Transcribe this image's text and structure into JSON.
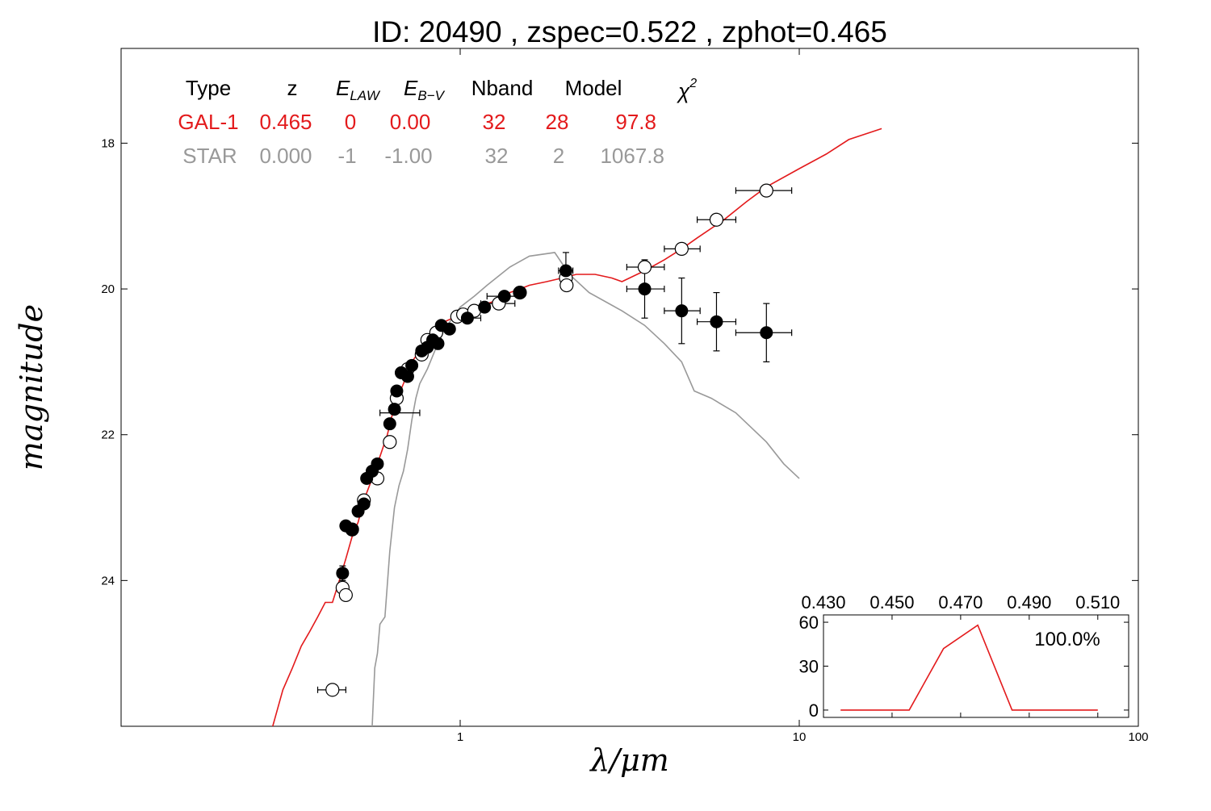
{
  "title": "ID:  20490 , zspec=0.522 , zphot=0.465",
  "colors": {
    "galaxy": "#e31a1c",
    "star": "#999999",
    "axis": "#000000"
  },
  "chart_data": [
    {
      "type": "scatter",
      "xlabel": "λ/μm",
      "ylabel": "magnitude",
      "x_scale": "log",
      "y_inverted": true,
      "xlim": [
        0.1,
        100
      ],
      "ylim": [
        26.0,
        16.7
      ],
      "x_ticks": [
        {
          "value": 1,
          "label": "1"
        },
        {
          "value": 10,
          "label": "10"
        },
        {
          "value": 100,
          "label": "100"
        }
      ],
      "y_ticks": [
        {
          "value": 18,
          "label": "18"
        },
        {
          "value": 20,
          "label": "20"
        },
        {
          "value": 22,
          "label": "22"
        },
        {
          "value": 24,
          "label": "24"
        }
      ],
      "table": {
        "header": [
          "Type",
          "z",
          "E_LAW",
          "E_B−V",
          "Nband",
          "Model",
          "χ²"
        ],
        "header_display": {
          "type": "Type",
          "z": "z",
          "elaw_main": "E",
          "elaw_sub": "LAW",
          "ebv_main": "E",
          "ebv_sub": "B−V",
          "nband": "Nband",
          "model": "Model",
          "chi_main": "χ",
          "chi_sup": "2"
        },
        "rows": [
          {
            "type": "GAL-1",
            "z": "0.465",
            "elaw": "0",
            "ebv": "0.00",
            "nband": "32",
            "model": "28",
            "chi2": "97.8",
            "color": "#e31a1c"
          },
          {
            "type": "STAR",
            "z": "0.000",
            "elaw": "-1",
            "ebv": "-1.00",
            "nband": "32",
            "model": "2",
            "chi2": "1067.8",
            "color": "#999999"
          }
        ]
      },
      "series": [
        {
          "name": "GAL-1",
          "kind": "line",
          "points": [
            [
              0.28,
              26.0
            ],
            [
              0.3,
              25.5
            ],
            [
              0.32,
              25.2
            ],
            [
              0.34,
              24.9
            ],
            [
              0.36,
              24.7
            ],
            [
              0.38,
              24.5
            ],
            [
              0.4,
              24.3
            ],
            [
              0.42,
              24.3
            ],
            [
              0.44,
              24.0
            ],
            [
              0.46,
              23.7
            ],
            [
              0.48,
              23.4
            ],
            [
              0.5,
              23.2
            ],
            [
              0.52,
              22.9
            ],
            [
              0.55,
              22.6
            ],
            [
              0.58,
              22.3
            ],
            [
              0.61,
              22.0
            ],
            [
              0.64,
              21.6
            ],
            [
              0.68,
              21.3
            ],
            [
              0.72,
              21.0
            ],
            [
              0.76,
              20.85
            ],
            [
              0.8,
              20.7
            ],
            [
              0.85,
              20.55
            ],
            [
              0.9,
              20.45
            ],
            [
              0.95,
              20.4
            ],
            [
              1.0,
              20.35
            ],
            [
              1.1,
              20.25
            ],
            [
              1.2,
              20.2
            ],
            [
              1.3,
              20.15
            ],
            [
              1.4,
              20.05
            ],
            [
              1.5,
              20.0
            ],
            [
              1.6,
              19.95
            ],
            [
              1.8,
              19.9
            ],
            [
              2.0,
              19.85
            ],
            [
              2.2,
              19.8
            ],
            [
              2.5,
              19.8
            ],
            [
              2.8,
              19.85
            ],
            [
              3.0,
              19.9
            ],
            [
              3.5,
              19.75
            ],
            [
              4.0,
              19.6
            ],
            [
              4.5,
              19.45
            ],
            [
              5.0,
              19.3
            ],
            [
              6.0,
              19.05
            ],
            [
              7.0,
              18.8
            ],
            [
              8.0,
              18.6
            ],
            [
              10.0,
              18.35
            ],
            [
              12.0,
              18.15
            ],
            [
              14.0,
              17.95
            ],
            [
              17.5,
              17.8
            ]
          ]
        },
        {
          "name": "STAR",
          "kind": "line",
          "points": [
            [
              0.55,
              26.0
            ],
            [
              0.56,
              25.2
            ],
            [
              0.57,
              25.0
            ],
            [
              0.58,
              24.6
            ],
            [
              0.6,
              24.5
            ],
            [
              0.62,
              23.6
            ],
            [
              0.64,
              23.0
            ],
            [
              0.66,
              22.7
            ],
            [
              0.68,
              22.5
            ],
            [
              0.7,
              22.2
            ],
            [
              0.72,
              21.8
            ],
            [
              0.74,
              21.5
            ],
            [
              0.76,
              21.3
            ],
            [
              0.8,
              21.1
            ],
            [
              0.85,
              20.8
            ],
            [
              0.9,
              20.55
            ],
            [
              0.95,
              20.4
            ],
            [
              1.0,
              20.25
            ],
            [
              1.1,
              20.1
            ],
            [
              1.2,
              19.95
            ],
            [
              1.4,
              19.7
            ],
            [
              1.6,
              19.55
            ],
            [
              1.9,
              19.5
            ],
            [
              2.1,
              19.8
            ],
            [
              2.4,
              20.05
            ],
            [
              3.0,
              20.3
            ],
            [
              3.5,
              20.5
            ],
            [
              4.0,
              20.75
            ],
            [
              4.5,
              21.0
            ],
            [
              4.9,
              21.4
            ],
            [
              5.5,
              21.5
            ],
            [
              6.5,
              21.7
            ],
            [
              8.0,
              22.1
            ],
            [
              9.0,
              22.4
            ],
            [
              10.0,
              22.6
            ]
          ]
        },
        {
          "name": "observed",
          "kind": "filled-markers",
          "points": [
            [
              0.45,
              23.9
            ],
            [
              0.46,
              23.25
            ],
            [
              0.48,
              23.3
            ],
            [
              0.5,
              23.05
            ],
            [
              0.52,
              22.95
            ],
            [
              0.53,
              22.6
            ],
            [
              0.55,
              22.5
            ],
            [
              0.57,
              22.4
            ],
            [
              0.62,
              21.85
            ],
            [
              0.64,
              21.65
            ],
            [
              0.65,
              21.4
            ],
            [
              0.67,
              21.15
            ],
            [
              0.7,
              21.2
            ],
            [
              0.72,
              21.05
            ],
            [
              0.77,
              20.85
            ],
            [
              0.8,
              20.8
            ],
            [
              0.83,
              20.7
            ],
            [
              0.86,
              20.75
            ],
            [
              0.88,
              20.5
            ],
            [
              0.93,
              20.55
            ],
            [
              1.05,
              20.4
            ],
            [
              1.18,
              20.25
            ],
            [
              1.35,
              20.1
            ],
            [
              1.5,
              20.05
            ],
            [
              2.05,
              19.75
            ],
            [
              3.5,
              20.0
            ],
            [
              4.5,
              20.3
            ],
            [
              5.7,
              20.45
            ],
            [
              8.0,
              20.6
            ]
          ]
        },
        {
          "name": "model",
          "kind": "open-markers",
          "points": [
            [
              0.42,
              25.5
            ],
            [
              0.45,
              24.1
            ],
            [
              0.46,
              24.2
            ],
            [
              0.48,
              23.3
            ],
            [
              0.52,
              22.9
            ],
            [
              0.57,
              22.6
            ],
            [
              0.62,
              22.1
            ],
            [
              0.65,
              21.5
            ],
            [
              0.7,
              21.1
            ],
            [
              0.77,
              20.9
            ],
            [
              0.8,
              20.7
            ],
            [
              0.85,
              20.6
            ],
            [
              0.98,
              20.38
            ],
            [
              1.02,
              20.35
            ],
            [
              1.1,
              20.3
            ],
            [
              1.3,
              20.2
            ],
            [
              1.5,
              20.05
            ],
            [
              2.05,
              19.85
            ],
            [
              2.06,
              19.95
            ],
            [
              3.5,
              19.7
            ],
            [
              4.5,
              19.45
            ],
            [
              5.7,
              19.05
            ],
            [
              8.0,
              18.65
            ]
          ]
        },
        {
          "name": "errorbars",
          "kind": "errorbars",
          "points": [
            [
              0.42,
              25.5,
              0.38,
              0.46,
              0,
              0
            ],
            [
              0.45,
              23.9,
              0.44,
              0.46,
              0.1,
              0.1
            ],
            [
              0.47,
              23.28,
              0.45,
              0.49,
              0,
              0
            ],
            [
              0.67,
              21.7,
              0.58,
              0.76,
              0,
              0
            ],
            [
              1.3,
              20.2,
              1.15,
              1.45,
              0,
              0
            ],
            [
              1.05,
              20.4,
              0.95,
              1.15,
              0,
              0
            ],
            [
              1.35,
              20.1,
              1.2,
              1.5,
              0,
              0
            ],
            [
              2.05,
              19.75,
              1.95,
              2.15,
              0.25,
              0.25
            ],
            [
              3.5,
              20.0,
              3.1,
              4.0,
              0.4,
              0.4
            ],
            [
              3.5,
              19.7,
              3.1,
              4.0,
              0,
              0
            ],
            [
              4.5,
              20.3,
              4.0,
              5.1,
              0.45,
              0.45
            ],
            [
              4.5,
              19.45,
              4.0,
              5.1,
              0,
              0
            ],
            [
              5.7,
              20.45,
              5.0,
              6.5,
              0.4,
              0.4
            ],
            [
              5.7,
              19.05,
              5.0,
              6.5,
              0,
              0
            ],
            [
              8.0,
              20.6,
              6.5,
              9.5,
              0.4,
              0.4
            ],
            [
              8.0,
              18.65,
              6.5,
              9.5,
              0,
              0
            ]
          ]
        }
      ]
    },
    {
      "type": "line",
      "xlim": [
        0.43,
        0.519
      ],
      "ylim": [
        -5,
        65
      ],
      "x_ticks": [
        "0.430",
        "0.450",
        "0.470",
        "0.490",
        "0.510"
      ],
      "y_ticks": [
        "0",
        "30",
        "60"
      ],
      "annotation": "100.0%",
      "series": [
        {
          "points": [
            [
              0.435,
              0
            ],
            [
              0.455,
              0
            ],
            [
              0.465,
              42
            ],
            [
              0.475,
              58
            ],
            [
              0.485,
              0
            ],
            [
              0.51,
              0
            ]
          ]
        }
      ]
    }
  ]
}
